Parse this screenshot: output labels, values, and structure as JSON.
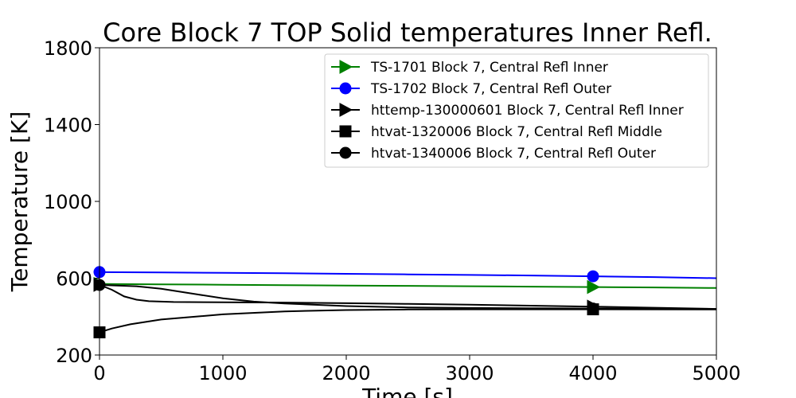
{
  "chart_data": {
    "type": "line",
    "title": "Core Block 7 TOP Solid temperatures Inner Refl.",
    "xlabel": "Time [s]",
    "ylabel": "Temperature [K]",
    "xlim": [
      0,
      5000
    ],
    "ylim": [
      200,
      1800
    ],
    "xticks": [
      "0",
      "1000",
      "2000",
      "3000",
      "4000",
      "5000"
    ],
    "yticks": [
      "200",
      "600",
      "1000",
      "1400",
      "1800"
    ],
    "grid": false,
    "legend_position": "top-right",
    "series": [
      {
        "name": "TS-1701 Block 7, Central Refl Inner",
        "color": "#008000",
        "marker": "triangle-right",
        "x": [
          0,
          500,
          1000,
          1500,
          2000,
          2500,
          3000,
          3500,
          4000,
          4500,
          5000
        ],
        "y": [
          570,
          568,
          566,
          564,
          562,
          560,
          558,
          556,
          554,
          552,
          549
        ]
      },
      {
        "name": "TS-1702 Block 7, Central Refl Outer",
        "color": "#0000ff",
        "marker": "circle",
        "x": [
          0,
          500,
          1000,
          1500,
          2000,
          2500,
          3000,
          3500,
          4000,
          4500,
          5000
        ],
        "y": [
          632,
          630,
          628,
          626,
          623,
          620,
          617,
          614,
          610,
          606,
          600
        ]
      },
      {
        "name": "httemp-130000601 Block 7, Central Refl Inner",
        "color": "#000000",
        "marker": "triangle-right",
        "x": [
          0,
          100,
          200,
          300,
          400,
          600,
          1000,
          1500,
          2000,
          2500,
          3000,
          4000,
          5000
        ],
        "y": [
          565,
          540,
          505,
          488,
          480,
          476,
          475,
          473,
          470,
          466,
          462,
          452,
          440
        ]
      },
      {
        "name": "htvat-1320006 Block 7, Central Refl Middle",
        "color": "#000000",
        "marker": "square",
        "x": [
          0,
          100,
          250,
          500,
          1000,
          1500,
          2000,
          2500,
          3000,
          4000,
          5000
        ],
        "y": [
          318,
          338,
          360,
          385,
          412,
          427,
          434,
          437,
          438,
          438,
          437
        ]
      },
      {
        "name": "htvat-1340006 Block 7, Central Refl Outer",
        "color": "#000000",
        "marker": "circle",
        "x": [
          0,
          300,
          500,
          800,
          1000,
          1250,
          1500,
          2000,
          2500,
          3000,
          4000,
          5000
        ],
        "y": [
          565,
          558,
          545,
          515,
          495,
          478,
          468,
          455,
          448,
          445,
          442,
          440
        ]
      }
    ],
    "markers_at": [
      0,
      4000
    ]
  }
}
